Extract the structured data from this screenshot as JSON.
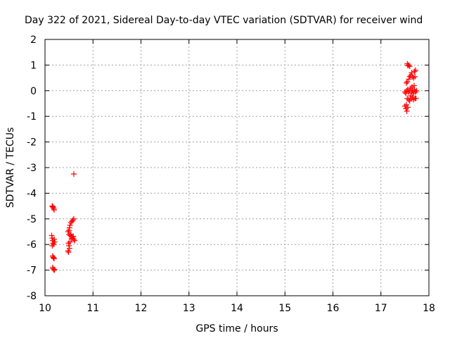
{
  "chart_data": {
    "type": "scatter",
    "title": "Day 322 of 2021, Sidereal Day-to-day VTEC variation (SDTVAR) for receiver wind",
    "xlabel": "GPS time / hours",
    "ylabel": "SDTVAR / TECUs",
    "xlim": [
      10,
      18
    ],
    "ylim": [
      -8,
      2
    ],
    "x_ticks": [
      "10",
      "11",
      "12",
      "13",
      "14",
      "15",
      "16",
      "17",
      "18"
    ],
    "y_ticks": [
      "-8",
      "-7",
      "-6",
      "-5",
      "-4",
      "-3",
      "-2",
      "-1",
      "0",
      "1",
      "2"
    ],
    "grid": true,
    "legend": "none",
    "marker": "plus",
    "series": [
      {
        "color": "#ff0000",
        "points": [
          [
            10.15,
            -4.5
          ],
          [
            10.17,
            -4.55
          ],
          [
            10.18,
            -4.6
          ],
          [
            10.19,
            -4.65
          ],
          [
            10.16,
            -4.52
          ],
          [
            10.14,
            -5.65
          ],
          [
            10.15,
            -5.75
          ],
          [
            10.16,
            -5.85
          ],
          [
            10.17,
            -5.95
          ],
          [
            10.18,
            -6.0
          ],
          [
            10.15,
            -6.05
          ],
          [
            10.19,
            -5.8
          ],
          [
            10.2,
            -5.9
          ],
          [
            10.16,
            -6.45
          ],
          [
            10.17,
            -6.5
          ],
          [
            10.19,
            -6.55
          ],
          [
            10.18,
            -6.52
          ],
          [
            10.16,
            -6.9
          ],
          [
            10.17,
            -6.95
          ],
          [
            10.19,
            -7.0
          ],
          [
            10.2,
            -6.98
          ],
          [
            10.6,
            -3.25
          ],
          [
            10.48,
            -5.5
          ],
          [
            10.5,
            -5.45
          ],
          [
            10.51,
            -5.35
          ],
          [
            10.52,
            -5.25
          ],
          [
            10.54,
            -5.15
          ],
          [
            10.56,
            -5.1
          ],
          [
            10.58,
            -5.05
          ],
          [
            10.6,
            -5.0
          ],
          [
            10.5,
            -5.6
          ],
          [
            10.52,
            -5.65
          ],
          [
            10.54,
            -5.6
          ],
          [
            10.56,
            -5.7
          ],
          [
            10.58,
            -5.75
          ],
          [
            10.6,
            -5.8
          ],
          [
            10.62,
            -5.85
          ],
          [
            10.55,
            -5.78
          ],
          [
            10.59,
            -5.68
          ],
          [
            10.49,
            -5.95
          ],
          [
            10.5,
            -6.05
          ],
          [
            10.51,
            -6.15
          ],
          [
            10.48,
            -6.25
          ],
          [
            10.49,
            -6.3
          ],
          [
            10.52,
            -5.9
          ],
          [
            17.55,
            1.05
          ],
          [
            17.56,
            0.98
          ],
          [
            17.58,
            1.0
          ],
          [
            17.6,
            0.95
          ],
          [
            17.53,
            0.3
          ],
          [
            17.55,
            0.35
          ],
          [
            17.58,
            0.45
          ],
          [
            17.6,
            0.55
          ],
          [
            17.62,
            0.6
          ],
          [
            17.64,
            0.7
          ],
          [
            17.66,
            0.55
          ],
          [
            17.68,
            0.5
          ],
          [
            17.7,
            0.75
          ],
          [
            17.72,
            0.8
          ],
          [
            17.71,
            0.55
          ],
          [
            17.5,
            -0.05
          ],
          [
            17.52,
            -0.1
          ],
          [
            17.54,
            0.0
          ],
          [
            17.56,
            0.05
          ],
          [
            17.58,
            -0.05
          ],
          [
            17.6,
            0.0
          ],
          [
            17.62,
            0.1
          ],
          [
            17.64,
            -0.05
          ],
          [
            17.66,
            0.0
          ],
          [
            17.68,
            -0.1
          ],
          [
            17.7,
            0.05
          ],
          [
            17.72,
            -0.05
          ],
          [
            17.74,
            0.0
          ],
          [
            17.65,
            0.15
          ],
          [
            17.69,
            0.2
          ],
          [
            17.55,
            -0.3
          ],
          [
            17.58,
            -0.35
          ],
          [
            17.6,
            -0.4
          ],
          [
            17.63,
            -0.3
          ],
          [
            17.66,
            -0.25
          ],
          [
            17.68,
            -0.35
          ],
          [
            17.71,
            -0.3
          ],
          [
            17.73,
            -0.3
          ],
          [
            17.62,
            -0.2
          ],
          [
            17.5,
            -0.6
          ],
          [
            17.52,
            -0.7
          ],
          [
            17.54,
            -0.8
          ],
          [
            17.56,
            -0.65
          ],
          [
            17.53,
            -0.55
          ]
        ]
      }
    ]
  }
}
